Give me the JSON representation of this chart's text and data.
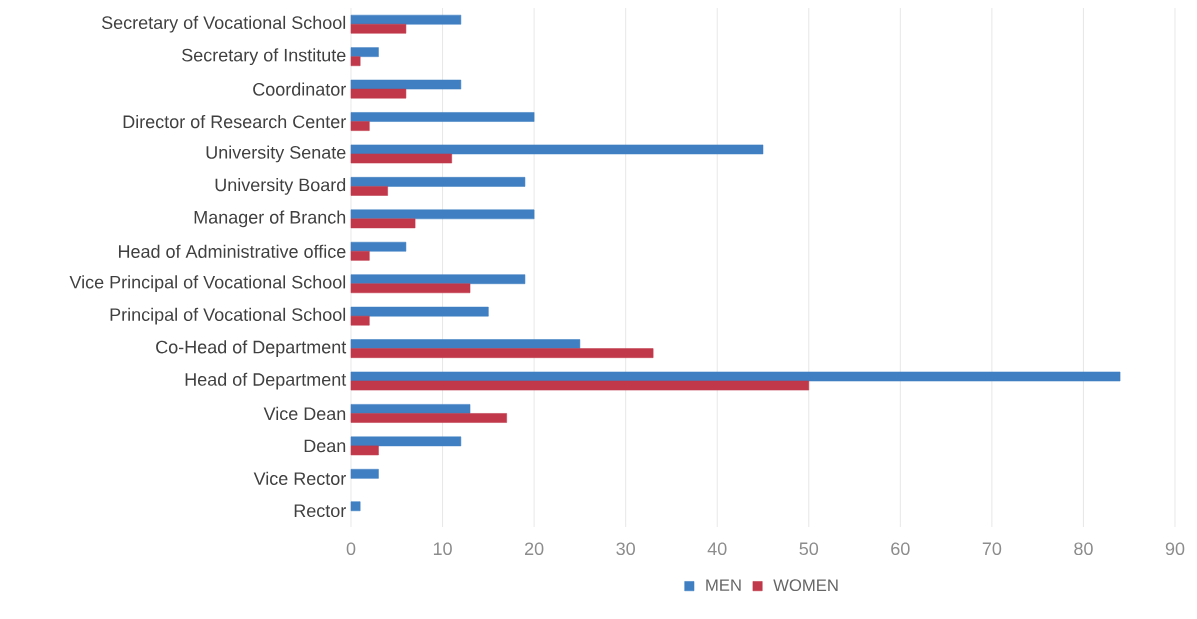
{
  "chart_data": {
    "type": "bar",
    "orientation": "horizontal",
    "categories": [
      "Secretary of Vocational School",
      "Secretary of Institute",
      "Coordinator",
      "Director of Research Center",
      "University Senate",
      "University Board",
      "Manager of Branch",
      "Head of Administrative office",
      "Vice Principal of Vocational School",
      "Principal of Vocational School",
      "Co-Head of Department",
      "Head of Department",
      "Vice Dean",
      "Dean",
      "Vice Rector",
      "Rector"
    ],
    "series": [
      {
        "name": "MEN",
        "color": "#3f7fc2",
        "values": [
          12,
          3,
          12,
          20,
          45,
          19,
          20,
          6,
          19,
          15,
          25,
          84,
          13,
          12,
          3,
          1
        ]
      },
      {
        "name": "WOMEN",
        "color": "#c0384a",
        "values": [
          6,
          1,
          6,
          2,
          11,
          4,
          7,
          2,
          13,
          2,
          33,
          50,
          17,
          3,
          null,
          null
        ]
      }
    ],
    "xlim": [
      0,
      90
    ],
    "xticks": [
      0,
      10,
      20,
      30,
      40,
      50,
      60,
      70,
      80,
      90
    ],
    "grid": "x",
    "legend": "bottom"
  }
}
